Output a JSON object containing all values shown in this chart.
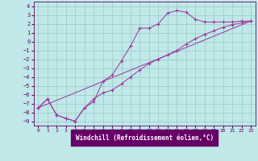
{
  "xlabel": "Windchill (Refroidissement éolien,°C)",
  "xlim": [
    -0.5,
    23.5
  ],
  "ylim": [
    -9.5,
    4.5
  ],
  "xticks": [
    0,
    1,
    2,
    3,
    4,
    5,
    6,
    7,
    8,
    9,
    10,
    11,
    12,
    13,
    14,
    15,
    16,
    17,
    18,
    19,
    20,
    21,
    22,
    23
  ],
  "yticks": [
    4,
    3,
    2,
    1,
    0,
    -1,
    -2,
    -3,
    -4,
    -5,
    -6,
    -7,
    -8,
    -9
  ],
  "bg_color": "#c0e8e8",
  "grid_color": "#98c8c8",
  "line_color": "#993399",
  "xlabel_bg": "#660066",
  "xlabel_fg": "#ffffff",
  "line1_x": [
    0,
    1,
    2,
    3,
    4,
    5,
    6,
    7,
    8,
    9,
    10,
    11,
    12,
    13,
    14,
    15,
    16,
    17,
    18,
    19,
    20,
    21,
    22,
    23
  ],
  "line1_y": [
    -7.5,
    -6.5,
    -8.3,
    -8.7,
    -9.0,
    -7.5,
    -6.8,
    -4.5,
    -3.8,
    -2.2,
    -0.5,
    1.5,
    1.5,
    2.0,
    3.2,
    3.5,
    3.3,
    2.5,
    2.2,
    2.2,
    2.2,
    2.2,
    2.3,
    2.3
  ],
  "line2_x": [
    0,
    1,
    2,
    3,
    4,
    5,
    6,
    7,
    8,
    9,
    10,
    11,
    12,
    13,
    14,
    15,
    16,
    17,
    18,
    19,
    20,
    21,
    22,
    23
  ],
  "line2_y": [
    -7.5,
    -6.5,
    -8.3,
    -8.7,
    -9.0,
    -7.5,
    -6.5,
    -5.8,
    -5.5,
    -4.8,
    -4.0,
    -3.2,
    -2.5,
    -2.0,
    -1.5,
    -1.0,
    -0.3,
    0.3,
    0.8,
    1.2,
    1.6,
    1.9,
    2.1,
    2.3
  ],
  "line3_x": [
    0,
    23
  ],
  "line3_y": [
    -7.5,
    2.3
  ]
}
